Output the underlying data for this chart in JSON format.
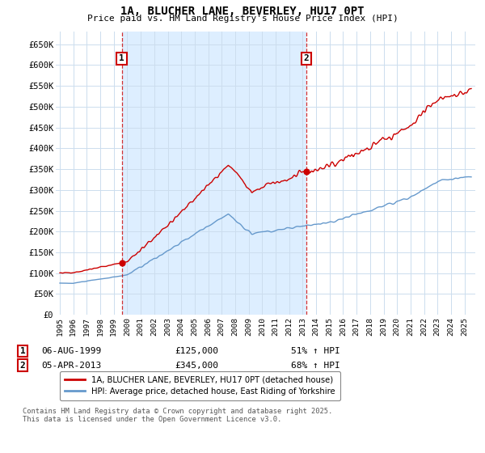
{
  "title": "1A, BLUCHER LANE, BEVERLEY, HU17 0PT",
  "subtitle": "Price paid vs. HM Land Registry's House Price Index (HPI)",
  "ylabel_ticks": [
    "£0",
    "£50K",
    "£100K",
    "£150K",
    "£200K",
    "£250K",
    "£300K",
    "£350K",
    "£400K",
    "£450K",
    "£500K",
    "£550K",
    "£600K",
    "£650K"
  ],
  "ylim": [
    0,
    680000
  ],
  "ytick_vals": [
    0,
    50000,
    100000,
    150000,
    200000,
    250000,
    300000,
    350000,
    400000,
    450000,
    500000,
    550000,
    600000,
    650000
  ],
  "red_color": "#cc0000",
  "blue_color": "#6699cc",
  "shade_color": "#ddeeff",
  "grid_color": "#ccddee",
  "bg_color": "#ffffff",
  "sale1_year": 1999.59,
  "sale1_price": 125000,
  "sale2_year": 2013.26,
  "sale2_price": 345000,
  "annotation1_date": "06-AUG-1999",
  "annotation1_price": "£125,000",
  "annotation1_hpi": "51% ↑ HPI",
  "annotation2_date": "05-APR-2013",
  "annotation2_price": "£345,000",
  "annotation2_hpi": "68% ↑ HPI",
  "legend1": "1A, BLUCHER LANE, BEVERLEY, HU17 0PT (detached house)",
  "legend2": "HPI: Average price, detached house, East Riding of Yorkshire",
  "footnote": "Contains HM Land Registry data © Crown copyright and database right 2025.\nThis data is licensed under the Open Government Licence v3.0."
}
